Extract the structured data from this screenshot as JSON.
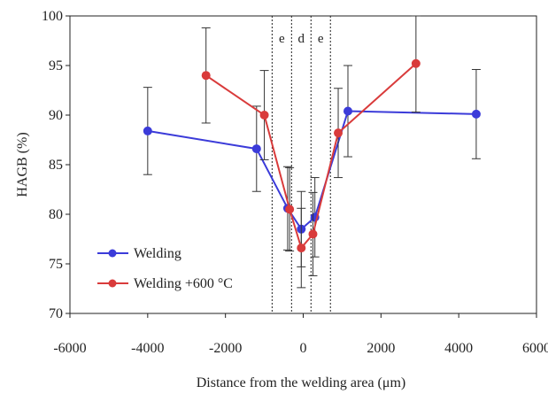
{
  "chart_data": {
    "type": "line",
    "xlabel": "Distance from the welding area (μm)",
    "ylabel": "HAGB (%)",
    "xlim": [
      -6000,
      6000
    ],
    "ylim": [
      70,
      100
    ],
    "xticks": [
      "-6000",
      "-4000",
      "-2000",
      "0",
      "2000",
      "4000",
      "6000"
    ],
    "yticks": [
      "70",
      "75",
      "80",
      "85",
      "90",
      "95",
      "100"
    ],
    "grid": false,
    "legend_position": "bottom-left",
    "series": [
      {
        "name": "Welding",
        "color": "#3b3bd9",
        "x": [
          -4000,
          -1200,
          -400,
          -50,
          300,
          1150,
          4450
        ],
        "y": [
          88.4,
          86.6,
          80.6,
          78.5,
          79.7,
          90.4,
          90.1
        ],
        "err": [
          4.4,
          4.3,
          4.2,
          3.8,
          4.0,
          4.6,
          4.5
        ]
      },
      {
        "name": "Welding +600 °C",
        "color": "#d93b3b",
        "x": [
          -2500,
          -1000,
          -350,
          -50,
          250,
          900,
          2900
        ],
        "y": [
          94.0,
          90.0,
          80.5,
          76.6,
          78.0,
          88.2,
          95.2
        ],
        "err": [
          4.8,
          4.5,
          4.2,
          4.0,
          4.2,
          4.5,
          4.9
        ]
      }
    ],
    "zone_boundaries": [
      -800,
      -300,
      200,
      700
    ],
    "zone_labels": [
      {
        "text": "e",
        "x": -550
      },
      {
        "text": "d",
        "x": -50
      },
      {
        "text": "e",
        "x": 450
      }
    ]
  }
}
